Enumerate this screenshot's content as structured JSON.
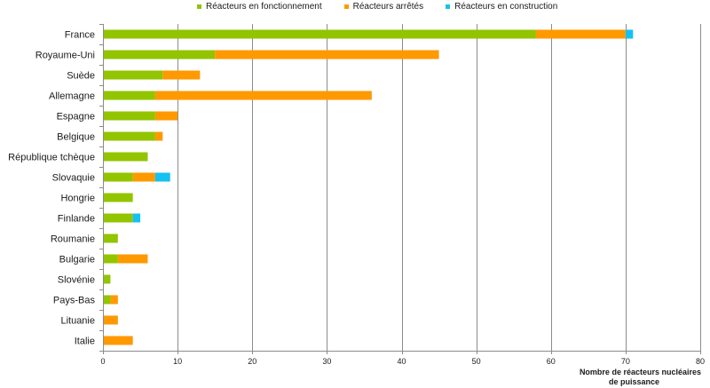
{
  "chart_data": {
    "type": "bar",
    "orientation": "horizontal",
    "stacked": true,
    "categories": [
      "France",
      "Royaume-Uni",
      "Suède",
      "Allemagne",
      "Espagne",
      "Belgique",
      "République tchèque",
      "Slovaquie",
      "Hongrie",
      "Finlande",
      "Roumanie",
      "Bulgarie",
      "Slovénie",
      "Pays-Bas",
      "Lituanie",
      "Italie"
    ],
    "series": [
      {
        "name": "Réacteurs en fonctionnement",
        "color": "#92c400",
        "values": [
          58,
          15,
          8,
          7,
          7,
          7,
          6,
          4,
          4,
          4,
          2,
          2,
          1,
          1,
          0,
          0
        ]
      },
      {
        "name": "Réacteurs arrêtés",
        "color": "#ff9900",
        "values": [
          12,
          30,
          5,
          29,
          3,
          1,
          0,
          3,
          0,
          0,
          0,
          4,
          0,
          1,
          2,
          4
        ]
      },
      {
        "name": "Réacteurs en construction",
        "color": "#14c1f2",
        "values": [
          1,
          0,
          0,
          0,
          0,
          0,
          0,
          2,
          0,
          1,
          0,
          0,
          0,
          0,
          0,
          0
        ]
      }
    ],
    "xlim": [
      0,
      80
    ],
    "xticks": [
      0,
      10,
      20,
      30,
      40,
      50,
      60,
      70,
      80
    ],
    "xlabel_line1": "Nombre de réacteurs nucléaires",
    "xlabel_line2": "de puissance",
    "ylabel": "",
    "title": "",
    "grid": "vertical",
    "legend": "top"
  }
}
